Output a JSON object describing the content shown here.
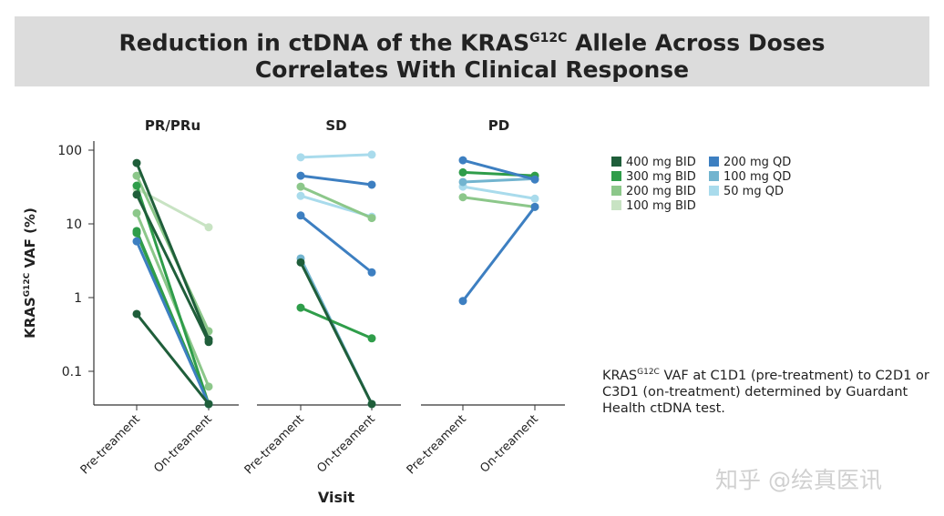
{
  "title": {
    "line1_pre": "Reduction in ctDNA of the KRAS",
    "line1_sup": "G12C",
    "line1_post": " Allele Across Doses",
    "line2": "Correlates With Clinical Response"
  },
  "note": {
    "pre": "KRAS",
    "sup": "G12C",
    "post": " VAF at C1D1 (pre-treatment) to C2D1 or C3D1 (on-treatment) determined by Guardant Health ctDNA test."
  },
  "watermark": "知乎 @绘真医讯",
  "chart_data": {
    "type": "line",
    "ylabel": "KRAS G12C VAF (%)",
    "ylabel_main": "KRAS",
    "ylabel_sup": "G12C",
    "ylabel_post": " VAF (%)",
    "xlabel": "Visit",
    "yscale": "log",
    "ylim": [
      0.035,
      130
    ],
    "yticks": [
      {
        "v": 100,
        "label": "100"
      },
      {
        "v": 10,
        "label": "10"
      },
      {
        "v": 1,
        "label": "1"
      },
      {
        "v": 0.1,
        "label": "0.1"
      }
    ],
    "categories": [
      "Pre-treament",
      "On-treament"
    ],
    "legend": [
      {
        "name": "400 mg BID",
        "color": "#1f5e3a"
      },
      {
        "name": "300 mg BID",
        "color": "#2f9d4a"
      },
      {
        "name": "200 mg BID",
        "color": "#8cc78a"
      },
      {
        "name": "100 mg BID",
        "color": "#c8e3c3"
      },
      {
        "name": "200 mg QD",
        "color": "#3d7fc1"
      },
      {
        "name": "100 mg QD",
        "color": "#72b4cf"
      },
      {
        "name": "50 mg QD",
        "color": "#a9dbec"
      }
    ],
    "panels": [
      {
        "title": "PR/PRu",
        "series": [
          {
            "dose": "100 mg BID",
            "values": [
              30,
              9
            ]
          },
          {
            "dose": "200 mg BID",
            "values": [
              45,
              0.35
            ]
          },
          {
            "dose": "200 mg BID",
            "values": [
              14,
              0.062
            ]
          },
          {
            "dose": "300 mg BID",
            "values": [
              33,
              0.036
            ]
          },
          {
            "dose": "300 mg BID",
            "values": [
              8,
              0.036
            ]
          },
          {
            "dose": "300 mg BID",
            "values": [
              7.5,
              0.036
            ]
          },
          {
            "dose": "200 mg QD",
            "values": [
              5.8,
              0.036
            ]
          },
          {
            "dose": "400 mg BID",
            "values": [
              0.6,
              0.036
            ]
          },
          {
            "dose": "400 mg BID",
            "values": [
              67,
              0.27
            ]
          },
          {
            "dose": "400 mg BID",
            "values": [
              25,
              0.25
            ]
          }
        ]
      },
      {
        "title": "SD",
        "series": [
          {
            "dose": "50 mg QD",
            "values": [
              80,
              87
            ]
          },
          {
            "dose": "50 mg QD",
            "values": [
              24,
              12.5
            ]
          },
          {
            "dose": "200 mg BID",
            "values": [
              32,
              12
            ]
          },
          {
            "dose": "200 mg QD",
            "values": [
              45,
              34
            ]
          },
          {
            "dose": "200 mg QD",
            "values": [
              13,
              2.2
            ]
          },
          {
            "dose": "100 mg QD",
            "values": [
              3.4,
              0.036
            ]
          },
          {
            "dose": "300 mg BID",
            "values": [
              0.73,
              0.28
            ]
          },
          {
            "dose": "400 mg BID",
            "values": [
              3,
              0.036
            ]
          }
        ]
      },
      {
        "title": "PD",
        "series": [
          {
            "dose": "50 mg QD",
            "values": [
              32,
              22
            ]
          },
          {
            "dose": "200 mg BID",
            "values": [
              23,
              17
            ]
          },
          {
            "dose": "100 mg QD",
            "values": [
              37,
              41
            ]
          },
          {
            "dose": "300 mg BID",
            "values": [
              50,
              45
            ]
          },
          {
            "dose": "200 mg QD",
            "values": [
              73,
              40
            ]
          },
          {
            "dose": "200 mg QD",
            "values": [
              0.9,
              17
            ]
          }
        ]
      }
    ]
  }
}
